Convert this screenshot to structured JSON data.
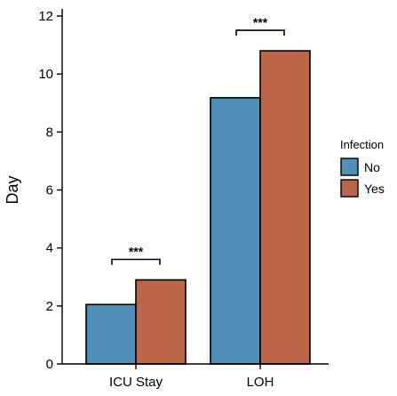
{
  "chart_data": {
    "type": "bar",
    "categories": [
      "ICU Stay",
      "LOH"
    ],
    "series": [
      {
        "name": "No",
        "color": "#4f8fba",
        "values": [
          2.05,
          9.18
        ]
      },
      {
        "name": "Yes",
        "color": "#bb6549",
        "values": [
          2.9,
          10.8
        ]
      }
    ],
    "title": "",
    "xlabel": "",
    "ylabel": "Day",
    "ylim": [
      0,
      12
    ],
    "yticks": [
      0,
      2,
      4,
      6,
      8,
      10,
      12
    ],
    "grid": false,
    "legend": {
      "title": "Infection",
      "placement": "right"
    },
    "annotations": [
      {
        "category": "ICU Stay",
        "label": "***"
      },
      {
        "category": "LOH",
        "label": "***"
      }
    ]
  }
}
